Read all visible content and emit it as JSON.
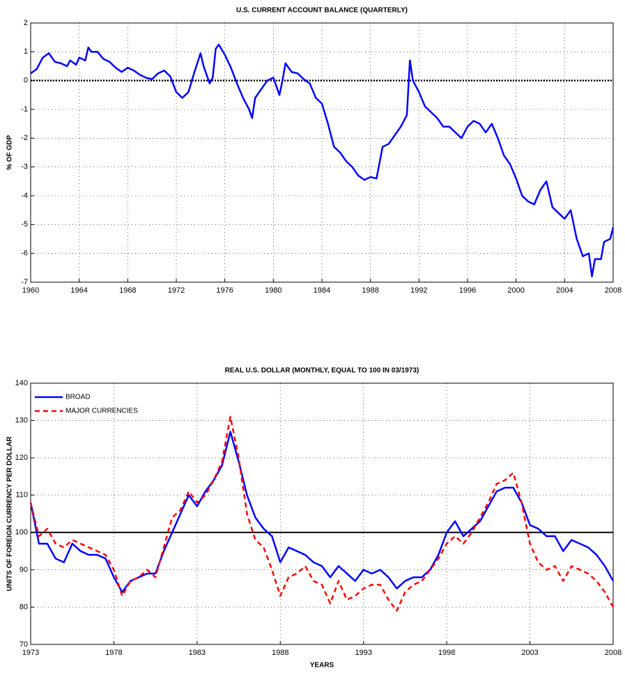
{
  "chart_data": [
    {
      "type": "line",
      "title": "U.S. CURRENT ACCOUNT BALANCE (QUARTERLY)",
      "y_label": "% OF GDP",
      "xlim": [
        1960,
        2008
      ],
      "xticks": [
        1960,
        1964,
        1968,
        1972,
        1976,
        1980,
        1984,
        1988,
        1992,
        1996,
        2000,
        2004,
        2008
      ],
      "ylim": [
        -7,
        2
      ],
      "yticks": [
        -7,
        -6,
        -5,
        -4,
        -3,
        -2,
        -1,
        0,
        1,
        2
      ],
      "grid": true,
      "hline": 0,
      "hline_style": "dotted",
      "x": [
        1960,
        1960.5,
        1961,
        1961.5,
        1962,
        1962.5,
        1963,
        1963.25,
        1963.75,
        1964,
        1964.5,
        1964.75,
        1965,
        1965.5,
        1966,
        1966.5,
        1967,
        1967.5,
        1968,
        1968.5,
        1969,
        1969.5,
        1970,
        1970.5,
        1971,
        1971.5,
        1972,
        1972.5,
        1973,
        1973.5,
        1974,
        1974.25,
        1974.75,
        1975,
        1975.25,
        1975.5,
        1976,
        1976.5,
        1977,
        1977.5,
        1978,
        1978.25,
        1978.5,
        1979,
        1979.5,
        1980,
        1980.5,
        1980.75,
        1981,
        1981.5,
        1982,
        1982.5,
        1983,
        1983.5,
        1984,
        1984.5,
        1985,
        1985.5,
        1986,
        1986.5,
        1987,
        1987.5,
        1988,
        1988.5,
        1989,
        1989.5,
        1990,
        1990.5,
        1991,
        1991.25,
        1991.5,
        1992,
        1992.5,
        1993,
        1993.5,
        1994,
        1994.5,
        1995,
        1995.5,
        1996,
        1996.5,
        1997,
        1997.5,
        1998,
        1998.5,
        1999,
        1999.5,
        2000,
        2000.5,
        2001,
        2001.5,
        2002,
        2002.5,
        2003,
        2003.5,
        2004,
        2004.5,
        2005,
        2005.5,
        2006,
        2006.25,
        2006.5,
        2007,
        2007.25,
        2007.75,
        2008
      ],
      "series": [
        {
          "name": "Current account",
          "color": "#0000ff",
          "linestyle": "solid",
          "values": [
            0.25,
            0.4,
            0.8,
            0.95,
            0.65,
            0.6,
            0.5,
            0.7,
            0.55,
            0.8,
            0.7,
            1.15,
            1.0,
            1.0,
            0.75,
            0.65,
            0.45,
            0.3,
            0.45,
            0.35,
            0.2,
            0.1,
            0.05,
            0.25,
            0.35,
            0.15,
            -0.4,
            -0.6,
            -0.4,
            0.3,
            0.95,
            0.5,
            -0.1,
            0.1,
            1.1,
            1.25,
            0.9,
            0.45,
            -0.1,
            -0.6,
            -1.0,
            -1.3,
            -0.6,
            -0.3,
            0.0,
            0.1,
            -0.5,
            0.0,
            0.6,
            0.3,
            0.25,
            0.05,
            -0.1,
            -0.6,
            -0.8,
            -1.5,
            -2.3,
            -2.5,
            -2.8,
            -3.0,
            -3.3,
            -3.45,
            -3.35,
            -3.4,
            -2.3,
            -2.2,
            -1.9,
            -1.6,
            -1.2,
            0.7,
            0.0,
            -0.4,
            -0.9,
            -1.1,
            -1.3,
            -1.6,
            -1.6,
            -1.8,
            -2.0,
            -1.6,
            -1.4,
            -1.5,
            -1.8,
            -1.5,
            -2.0,
            -2.6,
            -2.9,
            -3.4,
            -4.0,
            -4.2,
            -4.3,
            -3.8,
            -3.5,
            -4.4,
            -4.6,
            -4.8,
            -4.5,
            -5.5,
            -6.1,
            -6.0,
            -6.8,
            -6.2,
            -6.2,
            -5.6,
            -5.5,
            -5.1
          ]
        }
      ]
    },
    {
      "type": "line",
      "title": "REAL U.S. DOLLAR (MONTHLY, EQUAL TO 100 IN 03/1973)",
      "x_label": "YEARS",
      "y_label": "UNITS OF FOREIGN CURRENCY PER DOLLAR",
      "xlim": [
        1973,
        2008
      ],
      "xticks": [
        1973,
        1978,
        1983,
        1988,
        1993,
        1998,
        2003,
        2008
      ],
      "ylim": [
        70,
        140
      ],
      "yticks": [
        70,
        80,
        90,
        100,
        110,
        120,
        130,
        140
      ],
      "grid": true,
      "hline": 100,
      "hline_style": "solid",
      "legend": "top-left",
      "x": [
        1973,
        1973.5,
        1974,
        1974.5,
        1975,
        1975.5,
        1976,
        1976.5,
        1977,
        1977.5,
        1978,
        1978.5,
        1979,
        1979.5,
        1980,
        1980.5,
        1981,
        1981.5,
        1982,
        1982.5,
        1983,
        1983.5,
        1984,
        1984.5,
        1985,
        1985.5,
        1986,
        1986.5,
        1987,
        1987.5,
        1988,
        1988.5,
        1989,
        1989.5,
        1990,
        1990.5,
        1991,
        1991.5,
        1992,
        1992.5,
        1993,
        1993.5,
        1994,
        1994.5,
        1995,
        1995.5,
        1996,
        1996.5,
        1997,
        1997.5,
        1998,
        1998.5,
        1999,
        1999.5,
        2000,
        2000.5,
        2001,
        2001.5,
        2002,
        2002.5,
        2003,
        2003.5,
        2004,
        2004.5,
        2005,
        2005.5,
        2006,
        2006.5,
        2007,
        2007.5,
        2008
      ],
      "series": [
        {
          "name": "BROAD",
          "color": "#0000ff",
          "linestyle": "solid",
          "values": [
            108,
            97,
            97,
            93,
            92,
            97,
            95,
            94,
            94,
            93,
            88,
            84,
            87,
            88,
            89,
            89,
            95,
            100,
            105,
            110,
            107,
            111,
            114,
            118,
            127,
            119,
            110,
            104,
            101,
            99,
            92,
            96,
            95,
            94,
            92,
            91,
            88,
            91,
            89,
            87,
            90,
            89,
            90,
            88,
            85,
            87,
            88,
            88,
            90,
            94,
            100,
            103,
            99,
            101,
            103,
            107,
            111,
            112,
            112,
            108,
            102,
            101,
            99,
            99,
            95,
            98,
            97,
            96,
            94,
            91,
            87
          ]
        },
        {
          "name": "MAJOR CURRENCIES",
          "color": "#ff0000",
          "linestyle": "dashed",
          "values": [
            108,
            99,
            101,
            97,
            96,
            98,
            97,
            96,
            95,
            94,
            90,
            83,
            87,
            88,
            90,
            88,
            96,
            104,
            106,
            111,
            108,
            110,
            114,
            119,
            131,
            120,
            105,
            98,
            96,
            90,
            83,
            88,
            89,
            91,
            87,
            86,
            81,
            87,
            82,
            83,
            85,
            86,
            86,
            82,
            79,
            84,
            86,
            87,
            90,
            93,
            97,
            99,
            97,
            100,
            104,
            108,
            113,
            114,
            116,
            108,
            97,
            92,
            90,
            91,
            87,
            91,
            90,
            89,
            87,
            84,
            80
          ]
        }
      ]
    }
  ]
}
